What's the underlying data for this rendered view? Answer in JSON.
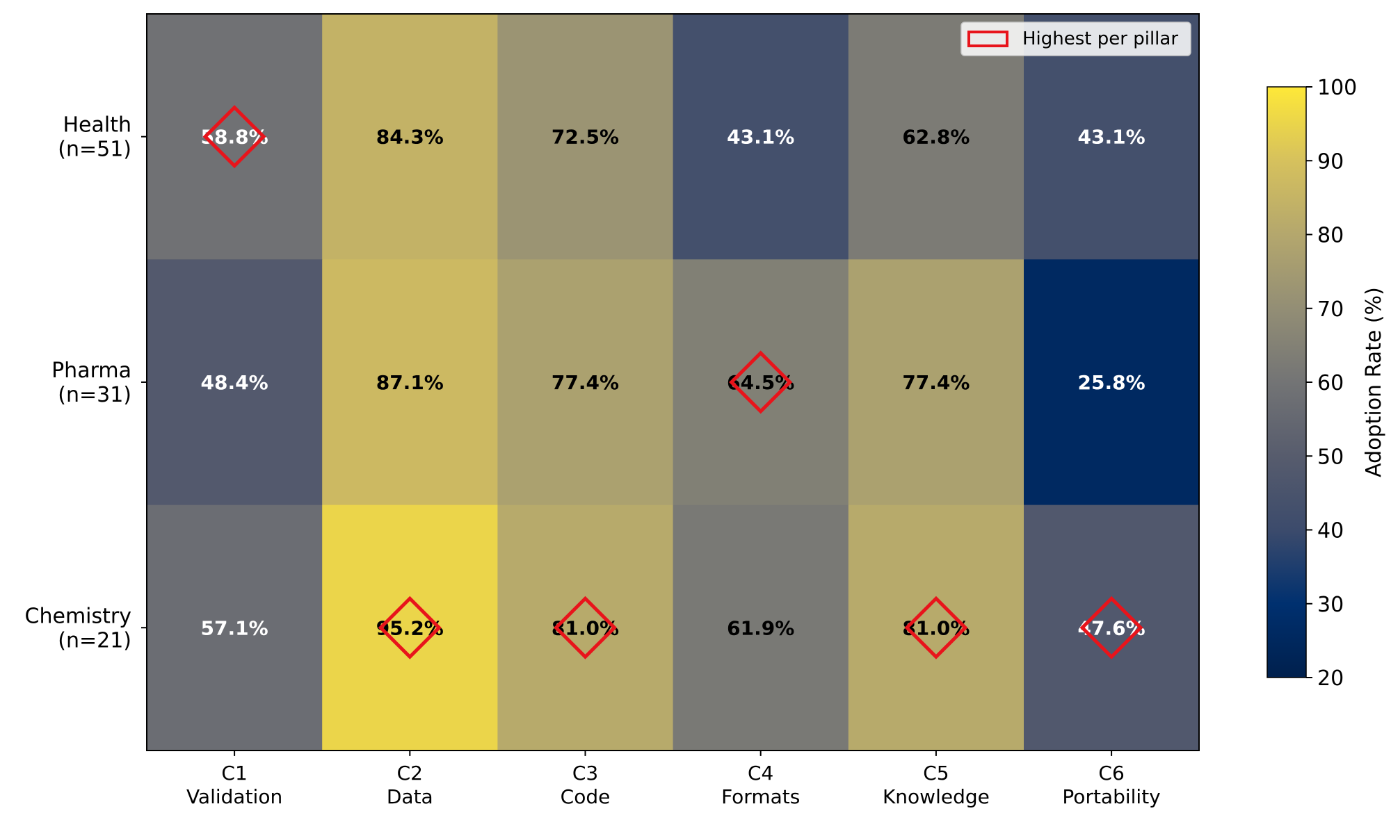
{
  "chart_data": {
    "type": "heatmap",
    "title": "",
    "rows": [
      "Health\n(n=51)",
      "Pharma\n(n=31)",
      "Chemistry\n(n=21)"
    ],
    "columns": [
      "C1\nValidation",
      "C2\nData",
      "C3\nCode",
      "C4\nFormats",
      "C5\nKnowledge",
      "C6\nPortability"
    ],
    "values": [
      [
        58.8,
        84.3,
        72.5,
        43.1,
        62.8,
        43.1
      ],
      [
        48.4,
        87.1,
        77.4,
        64.5,
        77.4,
        25.8
      ],
      [
        57.1,
        95.2,
        81.0,
        61.9,
        81.0,
        47.6
      ]
    ],
    "value_labels": [
      [
        "58.8%",
        "84.3%",
        "72.5%",
        "43.1%",
        "62.8%",
        "43.1%"
      ],
      [
        "48.4%",
        "87.1%",
        "77.4%",
        "64.5%",
        "77.4%",
        "25.8%"
      ],
      [
        "57.1%",
        "95.2%",
        "81.0%",
        "61.9%",
        "81.0%",
        "47.6%"
      ]
    ],
    "highlighted_cells": [
      [
        0,
        0
      ],
      [
        2,
        1
      ],
      [
        2,
        2
      ],
      [
        1,
        3
      ],
      [
        2,
        4
      ],
      [
        2,
        5
      ]
    ],
    "legend": {
      "label": "Highest per pillar",
      "placement": "top-right"
    },
    "colorbar": {
      "label": "Adoption Rate (%)",
      "range": [
        20,
        100
      ],
      "ticks": [
        "20",
        "30",
        "40",
        "50",
        "60",
        "70",
        "80",
        "90",
        "100"
      ],
      "colormap": "cividis"
    },
    "colors": {
      "highlight": "#e8141b",
      "axis": "#000000"
    }
  }
}
